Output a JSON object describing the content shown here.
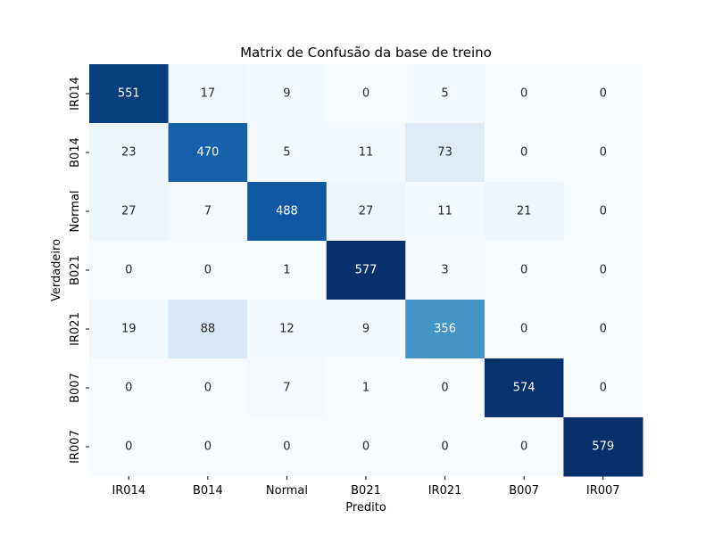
{
  "chart_data": {
    "type": "heatmap",
    "title": "Matrix de Confusão da base de treino",
    "xlabel": "Predito",
    "ylabel": "Verdadeiro",
    "x_categories": [
      "IR014",
      "B014",
      "Normal",
      "B021",
      "IR021",
      "B007",
      "IR007"
    ],
    "y_categories": [
      "IR014",
      "B014",
      "Normal",
      "B021",
      "IR021",
      "B007",
      "IR007"
    ],
    "values": [
      [
        551,
        17,
        9,
        0,
        5,
        0,
        0
      ],
      [
        23,
        470,
        5,
        11,
        73,
        0,
        0
      ],
      [
        27,
        7,
        488,
        27,
        11,
        21,
        0
      ],
      [
        0,
        0,
        1,
        577,
        3,
        0,
        0
      ],
      [
        19,
        88,
        12,
        9,
        356,
        0,
        0
      ],
      [
        0,
        0,
        7,
        1,
        0,
        574,
        0
      ],
      [
        0,
        0,
        0,
        0,
        0,
        0,
        579
      ]
    ],
    "value_range": [
      0,
      579
    ],
    "colormap": "Blues",
    "colorbar": false,
    "grid": false
  }
}
